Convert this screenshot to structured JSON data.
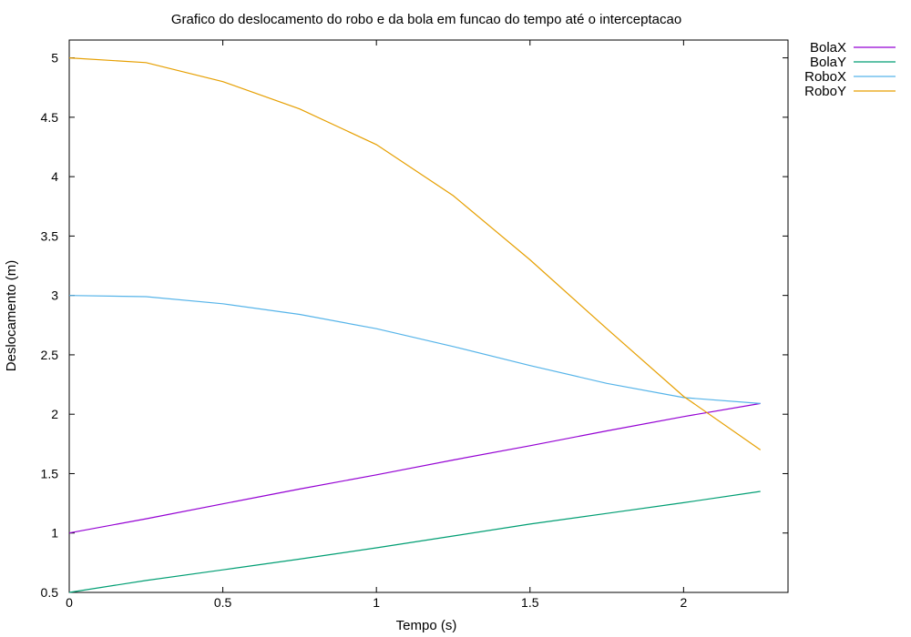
{
  "chart_data": {
    "type": "line",
    "title": "Grafico do deslocamento do robo e da bola em funcao do tempo até o interceptacao",
    "xlabel": "Tempo (s)",
    "ylabel": "Deslocamento (m)",
    "xlim": [
      0,
      2.34
    ],
    "ylim": [
      0.5,
      5.15
    ],
    "x_ticks": [
      0,
      0.5,
      1,
      1.5,
      2
    ],
    "x_tick_labels": [
      "0",
      "0.5",
      "1",
      "1.5",
      "2"
    ],
    "y_ticks": [
      0.5,
      1,
      1.5,
      2,
      2.5,
      3,
      3.5,
      4,
      4.5,
      5
    ],
    "y_tick_labels": [
      "0.5",
      "1",
      "1.5",
      "2",
      "2.5",
      "3",
      "3.5",
      "4",
      "4.5",
      "5"
    ],
    "grid": false,
    "legend_position": "outside top-right",
    "x": [
      0,
      0.25,
      0.5,
      0.75,
      1.0,
      1.25,
      1.5,
      1.75,
      2.0,
      2.25
    ],
    "series": [
      {
        "name": "BolaX",
        "color": "#9400d3",
        "values": [
          1.0,
          1.12,
          1.245,
          1.37,
          1.49,
          1.615,
          1.735,
          1.86,
          1.98,
          2.09
        ]
      },
      {
        "name": "BolaY",
        "color": "#009e73",
        "values": [
          0.5,
          0.6,
          0.69,
          0.78,
          0.875,
          0.975,
          1.075,
          1.165,
          1.255,
          1.35
        ]
      },
      {
        "name": "RoboX",
        "color": "#56b4e9",
        "values": [
          3.0,
          2.99,
          2.93,
          2.84,
          2.72,
          2.57,
          2.41,
          2.26,
          2.14,
          2.09
        ]
      },
      {
        "name": "RoboY",
        "color": "#e69f00",
        "values": [
          5.0,
          4.96,
          4.8,
          4.57,
          4.27,
          3.84,
          3.3,
          2.72,
          2.15,
          1.7
        ]
      }
    ]
  }
}
